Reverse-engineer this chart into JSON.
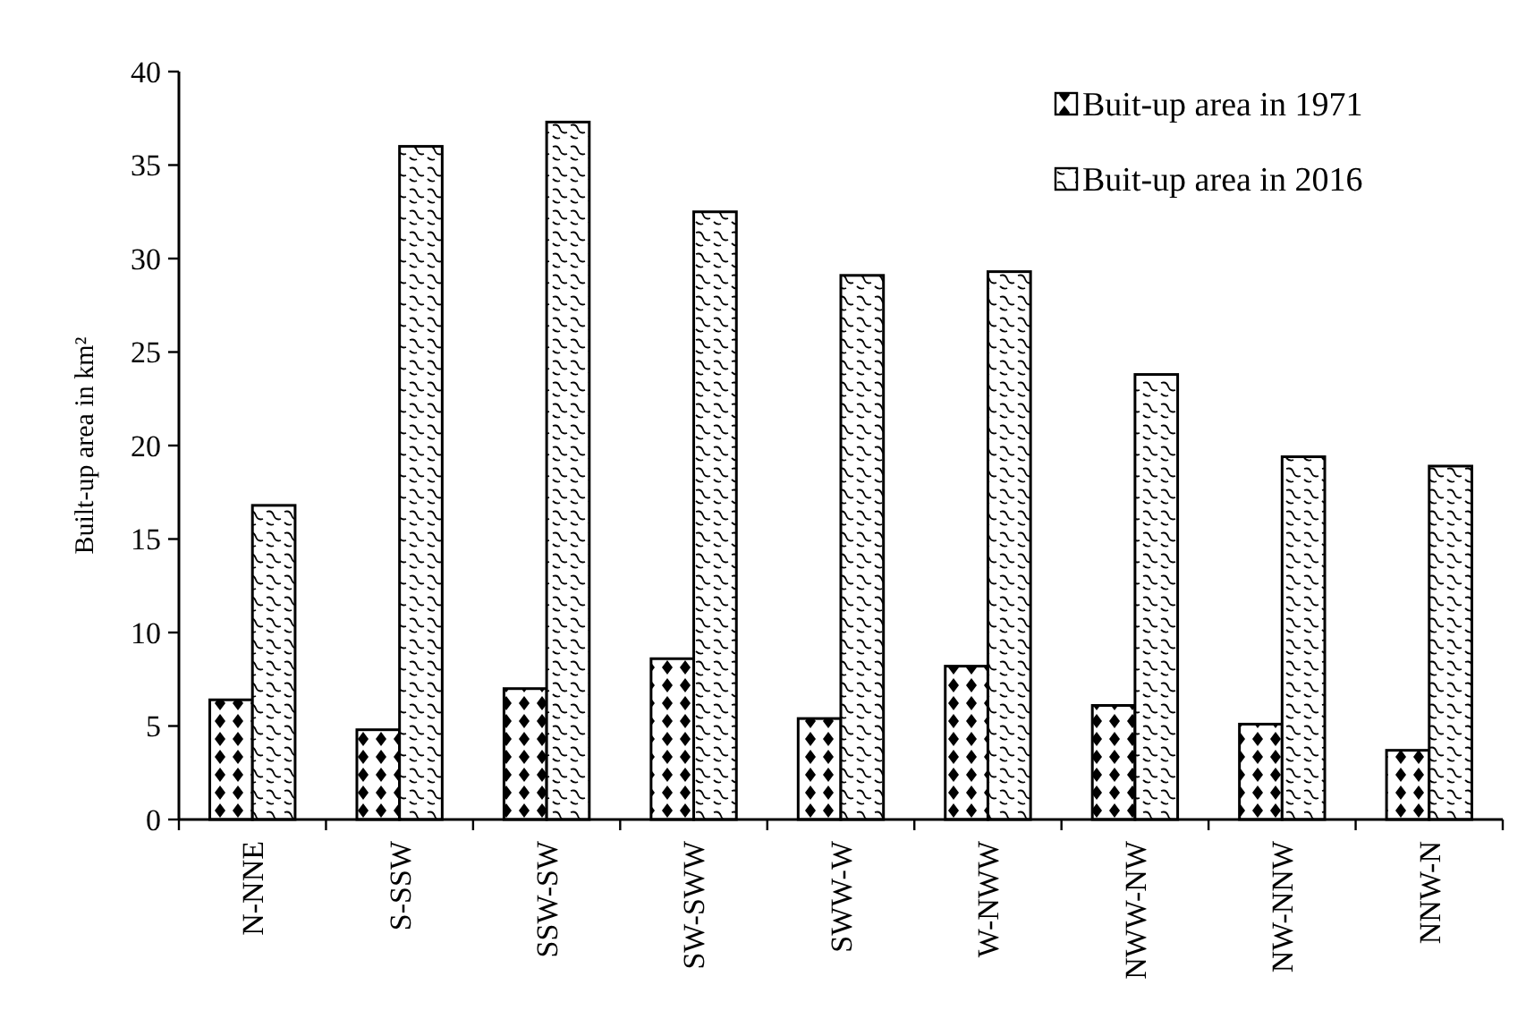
{
  "chart_data": {
    "type": "bar",
    "ylabel": "Built-up area in km²",
    "categories": [
      "N-NNE",
      "S-SSW",
      "SSW-SW",
      "SW-SWW",
      "SWW-W",
      "W-NWW",
      "NWW-NW",
      "NW-NNW",
      "NNW-N"
    ],
    "series": [
      {
        "name": "Buit-up area in 1971",
        "color": "#000000",
        "values": [
          6.4,
          4.8,
          7.0,
          8.6,
          5.4,
          8.2,
          6.1,
          5.1,
          3.7
        ]
      },
      {
        "name": "Buit-up area in 2016",
        "color": "#000000",
        "values": [
          16.8,
          36.0,
          37.3,
          32.5,
          29.1,
          29.3,
          23.8,
          19.4,
          18.9
        ]
      }
    ],
    "ylim": [
      0,
      40
    ],
    "yticks": [
      0,
      5,
      10,
      15,
      20,
      25,
      30,
      35,
      40
    ],
    "grid": false,
    "legend": "top right"
  }
}
